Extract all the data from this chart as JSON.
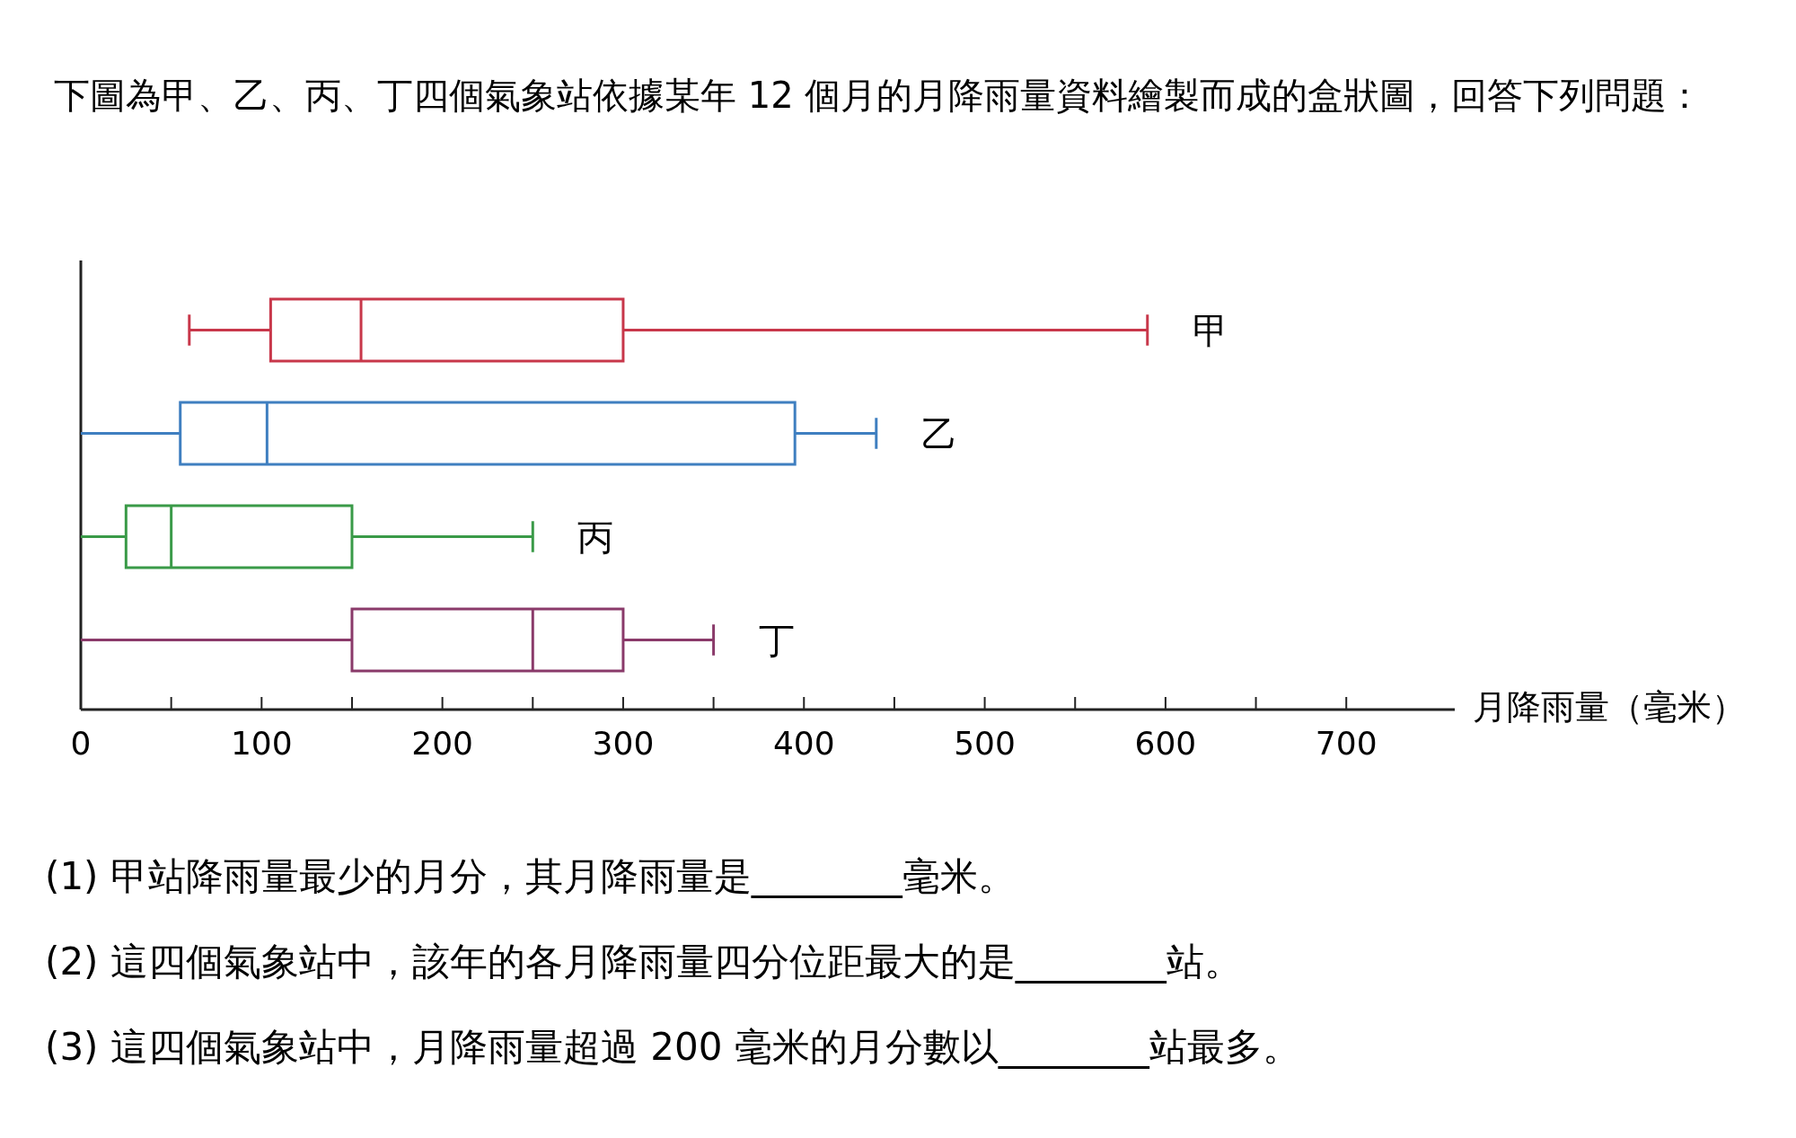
{
  "chart_data": {
    "type": "box",
    "orientation": "horizontal",
    "title": "下圖為甲、乙、丙、丁四個氣象站依據某年 12 個月的月降雨量資料繪製而成的盒狀圖，回答下列問題：",
    "categories": [
      "甲",
      "乙",
      "丙",
      "丁"
    ],
    "colors": [
      "#c8374a",
      "#3f7fc0",
      "#3a9a48",
      "#8a3a6a"
    ],
    "boxes": [
      {
        "low": 60,
        "q1": 105,
        "median": 155,
        "q3": 300,
        "high": 590
      },
      {
        "low": 0,
        "q1": 55,
        "median": 103,
        "q3": 395,
        "high": 440
      },
      {
        "low": 0,
        "q1": 25,
        "median": 50,
        "q3": 150,
        "high": 250
      },
      {
        "low": 0,
        "q1": 150,
        "median": 250,
        "q3": 300,
        "high": 350
      }
    ],
    "xlim": [
      0,
      760
    ],
    "xticks": [
      0,
      {
        "value": 50,
        "label": null
      },
      100,
      {
        "value": 150,
        "label": null
      },
      200,
      {
        "value": 250,
        "label": null
      },
      300,
      {
        "value": 350,
        "label": null
      },
      400,
      {
        "value": 450,
        "label": null
      },
      500,
      {
        "value": 550,
        "label": null
      },
      600,
      {
        "value": 650,
        "label": null
      },
      700
    ],
    "xlabel": "月降雨量（毫米）",
    "annotations": [
      "(1) 甲站降雨量最少的月分，其月降雨量是________毫米。",
      "(2) 這四個氣象站中，該年的各月降雨量四分位距最大的是________站。",
      "(3) 這四個氣象站中，月降雨量超過 200 毫米的月分數以________站最多。"
    ]
  }
}
